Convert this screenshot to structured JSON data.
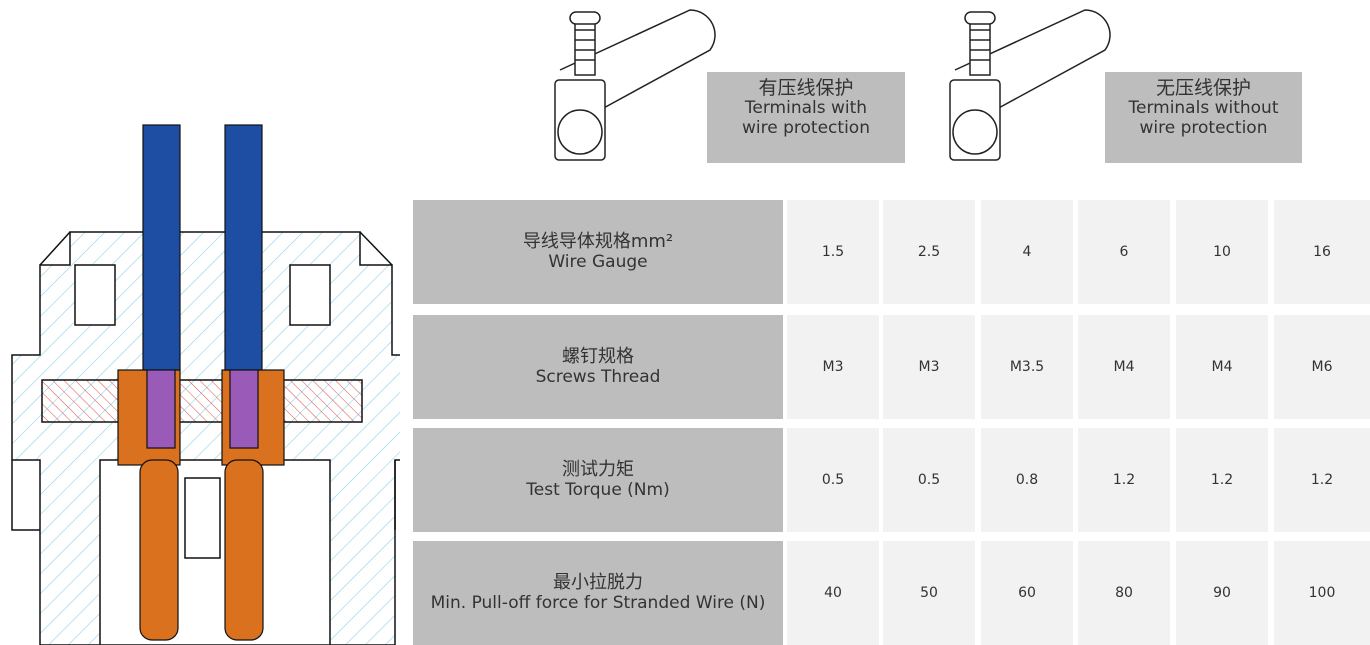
{
  "terminals": [
    {
      "title": "有压线保护",
      "subtitle": "Terminals with wire protection"
    },
    {
      "title": "无压线保护",
      "subtitle": "Terminals without wire protection"
    }
  ],
  "table": {
    "rows": [
      {
        "title": "导线导体规格mm²",
        "subtitle": "Wire Gauge",
        "values": [
          1.5,
          2.5,
          4,
          6,
          10,
          16
        ]
      },
      {
        "title": "螺钉规格",
        "subtitle": "Screws Thread",
        "values": [
          "M3",
          "M3",
          "M3.5",
          "M4",
          "M4",
          "M6"
        ]
      },
      {
        "title": "测试力矩",
        "subtitle": "Test Torque (Nm)",
        "values": [
          0.5,
          0.5,
          0.8,
          1.2,
          1.2,
          1.2
        ]
      },
      {
        "title": "最小拉脱力",
        "subtitle": "Min. Pull-off force for Stranded Wire (N)",
        "values": [
          40,
          50,
          60,
          80,
          90,
          100
        ]
      }
    ]
  }
}
